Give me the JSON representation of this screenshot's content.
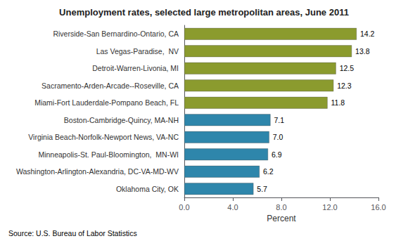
{
  "chart_data": {
    "type": "bar",
    "orientation": "horizontal",
    "title": "Unemployment rates, selected large metropolitan areas, June 2011",
    "categories": [
      "Oklahoma City, OK",
      "Washington-Arlington-Alexandria, DC-VA-MD-WV",
      "Minneapolis-St. Paul-Bloomington,  MN-WI",
      "Virginia Beach-Norfolk-Newport News, VA-NC",
      "Boston-Cambridge-Quincy, MA-NH",
      "Miami-Fort Lauderdale-Pompano Beach, FL",
      "Sacramento-Arden-Arcade--Roseville, CA",
      "Detroit-Warren-Livonia, MI",
      "Las Vegas-Paradise,  NV",
      "Riverside-San Bernardino-Ontario, CA"
    ],
    "values": [
      5.7,
      6.2,
      6.9,
      7.0,
      7.1,
      11.8,
      12.3,
      12.5,
      13.8,
      14.2
    ],
    "value_labels": [
      "5.7",
      "6.2",
      "6.9",
      "7.0",
      "7.1",
      "11.8",
      "12.3",
      "12.5",
      "13.8",
      "14.2"
    ],
    "colors": [
      "#2E86AB",
      "#2E86AB",
      "#2E86AB",
      "#2E86AB",
      "#2E86AB",
      "#8B9B2E",
      "#8B9B2E",
      "#8B9B2E",
      "#8B9B2E",
      "#8B9B2E"
    ],
    "xlabel": "Percent",
    "xlim": [
      0,
      16.0
    ],
    "xticks": [
      {
        "value": 0,
        "label": "0.0"
      },
      {
        "value": 4,
        "label": "4.0"
      },
      {
        "value": 8,
        "label": "8.0"
      },
      {
        "value": 12,
        "label": "12.0"
      },
      {
        "value": 16,
        "label": "16.0"
      }
    ],
    "data_labels": true,
    "grid": false,
    "annotations": [
      "Source: U.S. Bureau of Labor Statistics"
    ]
  }
}
